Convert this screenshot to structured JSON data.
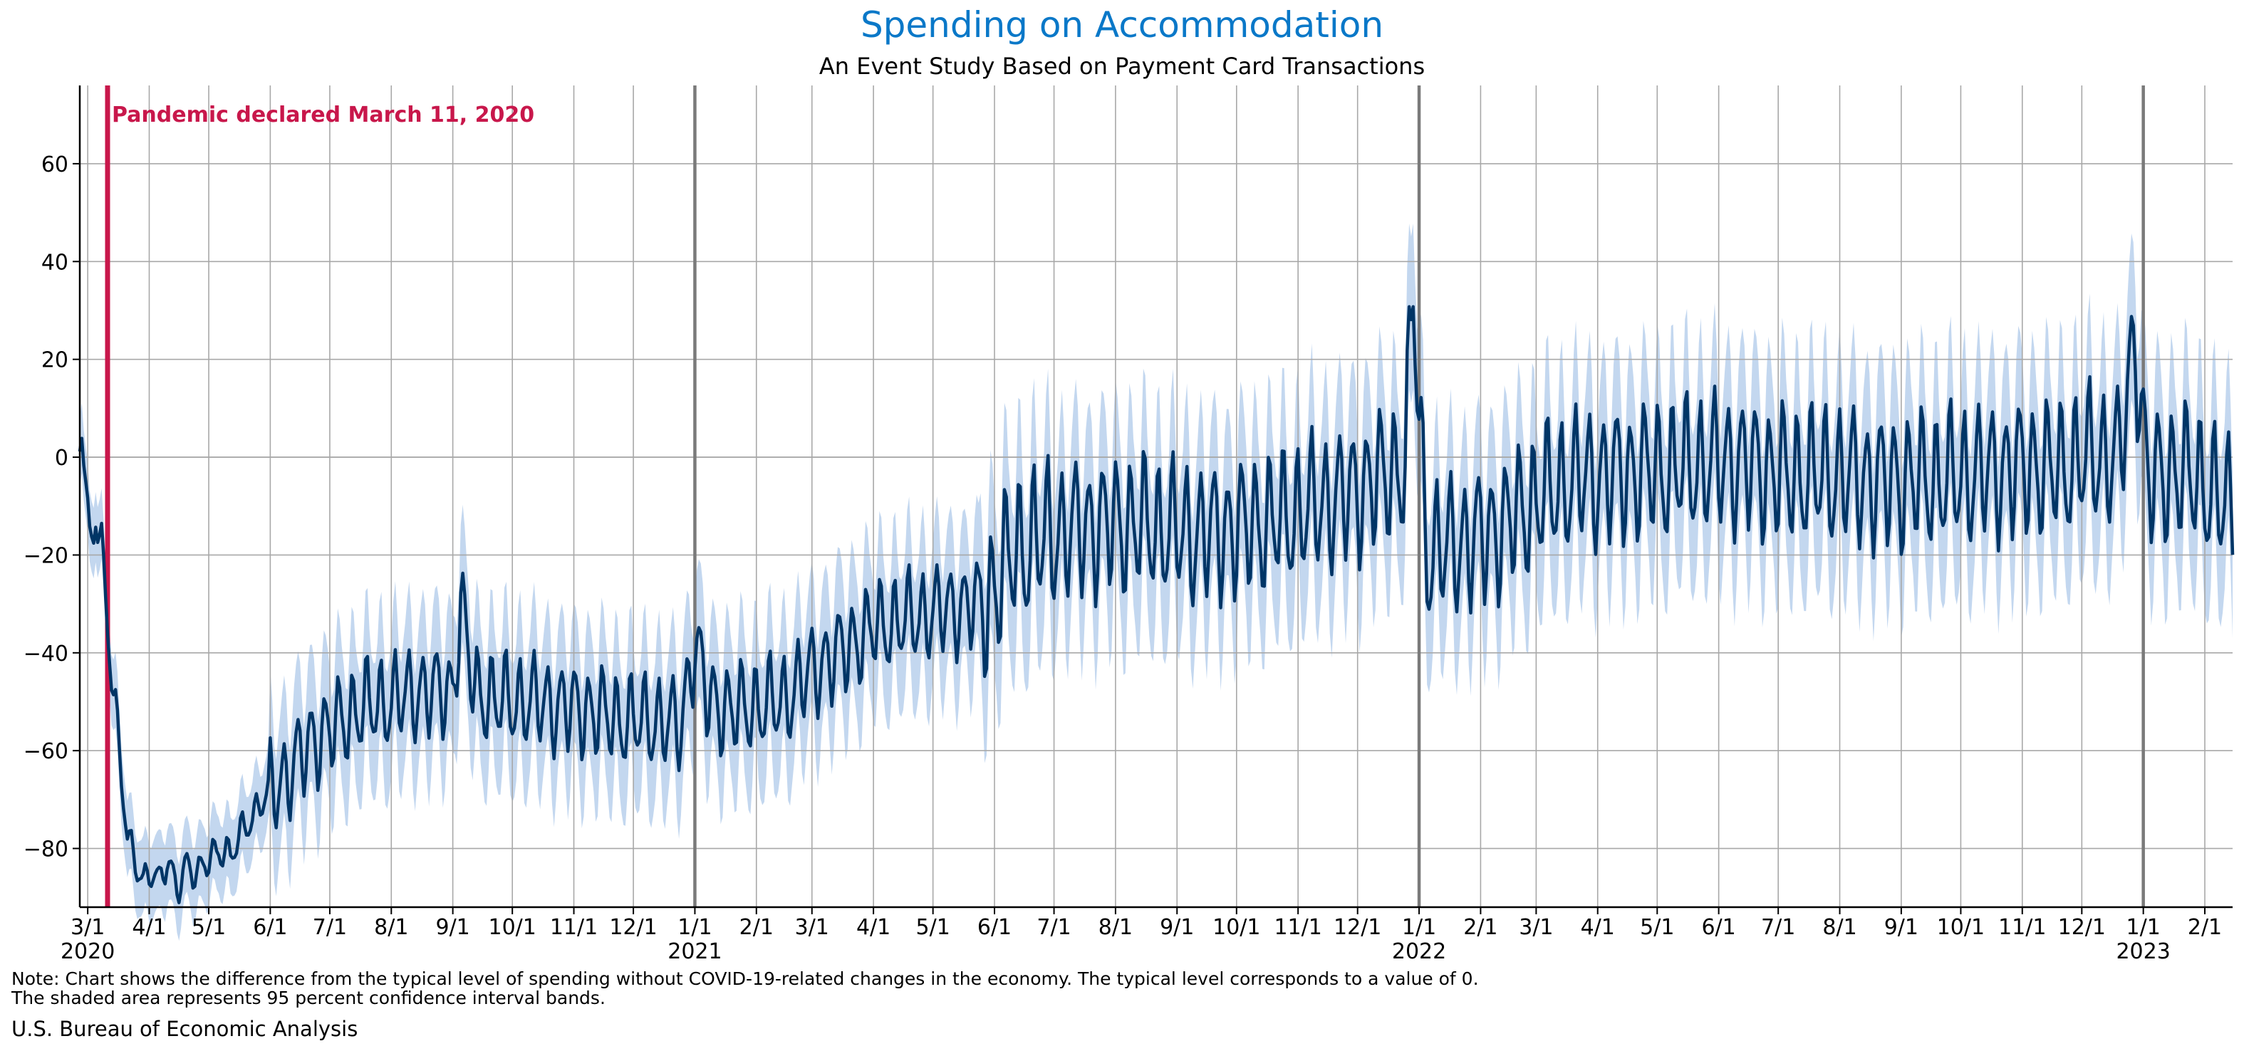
{
  "chart_data": {
    "type": "line",
    "title": "Spending on Accommodation",
    "subtitle": "An Event Study Based on Payment Card Transactions",
    "ylim": [
      -92,
      76
    ],
    "y_ticks": [
      -80,
      -60,
      -40,
      -20,
      0,
      20,
      40,
      60
    ],
    "y_tick_labels": [
      "−80",
      "−60",
      "−40",
      "−20",
      "0",
      "20",
      "40",
      "60"
    ],
    "grid": true,
    "x_range": [
      "2020-02-26",
      "2023-02-15"
    ],
    "x_ticks": [
      {
        "date": "2020-03-01",
        "label": "3/1",
        "year": "2020"
      },
      {
        "date": "2020-04-01",
        "label": "4/1"
      },
      {
        "date": "2020-05-01",
        "label": "5/1"
      },
      {
        "date": "2020-06-01",
        "label": "6/1"
      },
      {
        "date": "2020-07-01",
        "label": "7/1"
      },
      {
        "date": "2020-08-01",
        "label": "8/1"
      },
      {
        "date": "2020-09-01",
        "label": "9/1"
      },
      {
        "date": "2020-10-01",
        "label": "10/1"
      },
      {
        "date": "2020-11-01",
        "label": "11/1"
      },
      {
        "date": "2020-12-01",
        "label": "12/1"
      },
      {
        "date": "2021-01-01",
        "label": "1/1",
        "year": "2021"
      },
      {
        "date": "2021-02-01",
        "label": "2/1"
      },
      {
        "date": "2021-03-01",
        "label": "3/1"
      },
      {
        "date": "2021-04-01",
        "label": "4/1"
      },
      {
        "date": "2021-05-01",
        "label": "5/1"
      },
      {
        "date": "2021-06-01",
        "label": "6/1"
      },
      {
        "date": "2021-07-01",
        "label": "7/1"
      },
      {
        "date": "2021-08-01",
        "label": "8/1"
      },
      {
        "date": "2021-09-01",
        "label": "9/1"
      },
      {
        "date": "2021-10-01",
        "label": "10/1"
      },
      {
        "date": "2021-11-01",
        "label": "11/1"
      },
      {
        "date": "2021-12-01",
        "label": "12/1"
      },
      {
        "date": "2022-01-01",
        "label": "1/1",
        "year": "2022"
      },
      {
        "date": "2022-02-01",
        "label": "2/1"
      },
      {
        "date": "2022-03-01",
        "label": "3/1"
      },
      {
        "date": "2022-04-01",
        "label": "4/1"
      },
      {
        "date": "2022-05-01",
        "label": "5/1"
      },
      {
        "date": "2022-06-01",
        "label": "6/1"
      },
      {
        "date": "2022-07-01",
        "label": "7/1"
      },
      {
        "date": "2022-08-01",
        "label": "8/1"
      },
      {
        "date": "2022-09-01",
        "label": "9/1"
      },
      {
        "date": "2022-10-01",
        "label": "10/1"
      },
      {
        "date": "2022-11-01",
        "label": "11/1"
      },
      {
        "date": "2022-12-01",
        "label": "12/1"
      },
      {
        "date": "2023-01-01",
        "label": "1/1",
        "year": "2023"
      },
      {
        "date": "2023-02-01",
        "label": "2/1"
      }
    ],
    "year_lines": [
      "2021-01-01",
      "2022-01-01",
      "2023-01-01"
    ],
    "event": {
      "date": "2020-03-11",
      "label": "Pandemic declared March 11, 2020",
      "color": "#c8174b"
    },
    "series": [
      {
        "color": "#003566",
        "band_color": "#c3d7ef",
        "points": [
          [
            "2020-02-26",
            2
          ],
          [
            "2020-02-27",
            6
          ],
          [
            "2020-02-29",
            -5
          ],
          [
            "2020-03-02",
            -16
          ],
          [
            "2020-03-04",
            -17
          ],
          [
            "2020-03-05",
            -13
          ],
          [
            "2020-03-06",
            -16
          ],
          [
            "2020-03-08",
            -16
          ],
          [
            "2020-03-11",
            -35
          ],
          [
            "2020-03-13",
            -46
          ],
          [
            "2020-03-15",
            -50
          ],
          [
            "2020-03-18",
            -65
          ],
          [
            "2020-03-21",
            -78
          ],
          [
            "2020-03-25",
            -83
          ],
          [
            "2020-03-29",
            -87
          ],
          [
            "2020-04-02",
            -84
          ],
          [
            "2020-04-06",
            -87
          ],
          [
            "2020-04-10",
            -83
          ],
          [
            "2020-04-15",
            -88
          ],
          [
            "2020-04-20",
            -83
          ],
          [
            "2020-04-25",
            -86
          ],
          [
            "2020-05-01",
            -82
          ],
          [
            "2020-05-06",
            -80
          ],
          [
            "2020-05-12",
            -82
          ],
          [
            "2020-05-18",
            -76
          ],
          [
            "2020-05-24",
            -73
          ],
          [
            "2020-06-01",
            -68
          ],
          [
            "2020-06-08",
            -66
          ],
          [
            "2020-06-15",
            -62
          ],
          [
            "2020-06-22",
            -58
          ],
          [
            "2020-07-01",
            -56
          ],
          [
            "2020-07-10",
            -53
          ],
          [
            "2020-07-20",
            -51
          ],
          [
            "2020-08-01",
            -50
          ],
          [
            "2020-08-15",
            -48
          ],
          [
            "2020-09-01",
            -48
          ],
          [
            "2020-09-05",
            -30
          ],
          [
            "2020-09-12",
            -48
          ],
          [
            "2020-09-25",
            -50
          ],
          [
            "2020-10-10",
            -50
          ],
          [
            "2020-10-25",
            -51
          ],
          [
            "2020-11-10",
            -52
          ],
          [
            "2020-11-25",
            -54
          ],
          [
            "2020-12-10",
            -54
          ],
          [
            "2020-12-25",
            -55
          ],
          [
            "2021-01-01",
            -38
          ],
          [
            "2021-01-08",
            -50
          ],
          [
            "2021-01-20",
            -52
          ],
          [
            "2021-02-01",
            -51
          ],
          [
            "2021-02-15",
            -50
          ],
          [
            "2021-02-28",
            -44
          ],
          [
            "2021-03-15",
            -40
          ],
          [
            "2021-04-01",
            -35
          ],
          [
            "2021-04-20",
            -33
          ],
          [
            "2021-05-10",
            -31
          ],
          [
            "2021-05-28",
            -30
          ],
          [
            "2021-06-10",
            -20
          ],
          [
            "2021-06-25",
            -17
          ],
          [
            "2021-07-10",
            -15
          ],
          [
            "2021-07-25",
            -14
          ],
          [
            "2021-08-10",
            -14
          ],
          [
            "2021-08-25",
            -15
          ],
          [
            "2021-09-10",
            -16
          ],
          [
            "2021-09-25",
            -15
          ],
          [
            "2021-10-10",
            -14
          ],
          [
            "2021-10-25",
            -13
          ],
          [
            "2021-11-10",
            -10
          ],
          [
            "2021-11-25",
            -8
          ],
          [
            "2021-12-10",
            -5
          ],
          [
            "2021-12-25",
            -2
          ],
          [
            "2021-12-29",
            35
          ],
          [
            "2022-01-02",
            0
          ],
          [
            "2022-01-05",
            -20
          ],
          [
            "2022-01-20",
            -18
          ],
          [
            "2022-02-05",
            -16
          ],
          [
            "2022-02-20",
            -12
          ],
          [
            "2022-03-05",
            -8
          ],
          [
            "2022-03-20",
            -5
          ],
          [
            "2022-04-05",
            -4
          ],
          [
            "2022-04-20",
            -3
          ],
          [
            "2022-05-05",
            -3
          ],
          [
            "2022-05-20",
            -2
          ],
          [
            "2022-06-05",
            -1
          ],
          [
            "2022-06-20",
            -2
          ],
          [
            "2022-07-05",
            -4
          ],
          [
            "2022-07-20",
            -4
          ],
          [
            "2022-08-05",
            -4
          ],
          [
            "2022-08-20",
            -5
          ],
          [
            "2022-09-05",
            -5
          ],
          [
            "2022-09-20",
            -5
          ],
          [
            "2022-10-05",
            -4
          ],
          [
            "2022-10-20",
            -3
          ],
          [
            "2022-11-05",
            -2
          ],
          [
            "2022-11-20",
            -3
          ],
          [
            "2022-12-05",
            0
          ],
          [
            "2022-12-20",
            0
          ],
          [
            "2022-12-28",
            25
          ],
          [
            "2023-01-03",
            -5
          ],
          [
            "2023-01-15",
            -3
          ],
          [
            "2023-01-30",
            -5
          ],
          [
            "2023-02-10",
            -10
          ],
          [
            "2023-02-15",
            -10
          ]
        ]
      }
    ],
    "note": [
      "Note: Chart shows the difference from the typical level of spending without COVID-19-related changes in the economy. The typical level corresponds to a value of 0.",
      "The shaded area represents 95 percent confidence interval bands."
    ],
    "source": "U.S. Bureau of Economic Analysis"
  }
}
